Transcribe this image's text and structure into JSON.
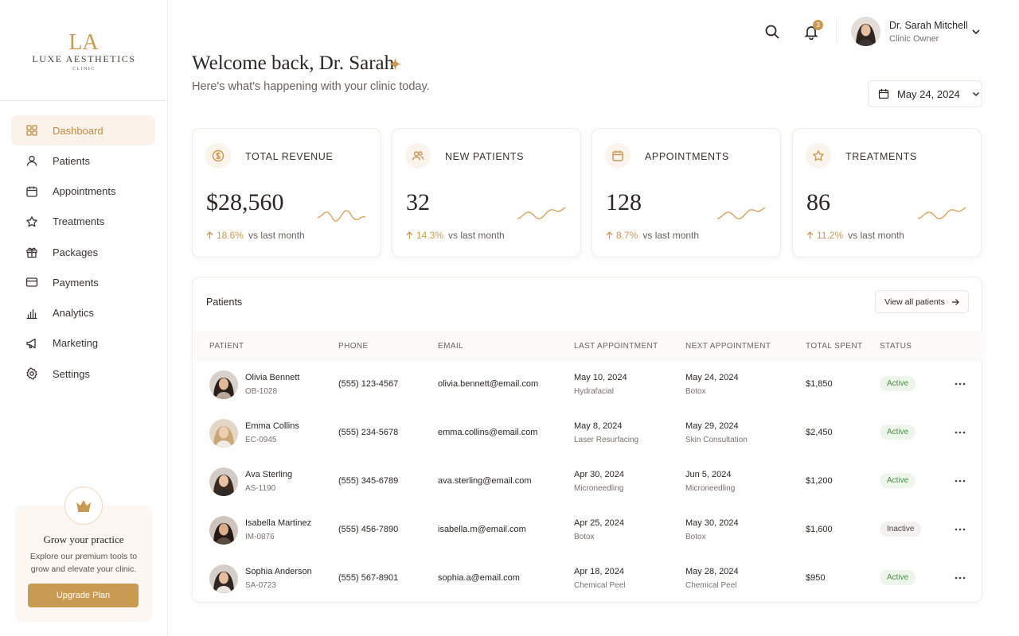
{
  "brand": {
    "mark": "LA",
    "name": "LUXE AESTHETICS",
    "sub": "CLINIC"
  },
  "nav": [
    {
      "label": "Dashboard",
      "icon": "grid-icon",
      "active": true
    },
    {
      "label": "Patients",
      "icon": "user-icon"
    },
    {
      "label": "Appointments",
      "icon": "calendar-icon"
    },
    {
      "label": "Treatments",
      "icon": "star-icon"
    },
    {
      "label": "Packages",
      "icon": "gift-icon"
    },
    {
      "label": "Payments",
      "icon": "credit-card-icon"
    },
    {
      "label": "Analytics",
      "icon": "bar-chart-icon"
    },
    {
      "label": "Marketing",
      "icon": "megaphone-icon"
    },
    {
      "label": "Settings",
      "icon": "gear-icon"
    }
  ],
  "promo": {
    "title": "Grow your practice",
    "text": "Explore our premium tools to grow and elevate your clinic.",
    "button": "Upgrade Plan",
    "icon": "crown-icon"
  },
  "header": {
    "notifications": "3",
    "user_name": "Dr. Sarah Mitchell",
    "user_role": "Clinic Owner",
    "welcome": "Welcome back, Dr. Sarah",
    "subtitle": "Here's what's happening with your clinic today.",
    "date": "May 24, 2024"
  },
  "stats": [
    {
      "label": "TOTAL REVENUE",
      "value": "$28,560",
      "change": "18.6%",
      "compare": "vs last month",
      "icon": "dollar-icon"
    },
    {
      "label": "NEW PATIENTS",
      "value": "32",
      "change": "14.3%",
      "compare": "vs last month",
      "icon": "users-icon"
    },
    {
      "label": "APPOINTMENTS",
      "value": "128",
      "change": "8.7%",
      "compare": "vs last month",
      "icon": "calendar-icon"
    },
    {
      "label": "TREATMENTS",
      "value": "86",
      "change": "11.2%",
      "compare": "vs last month",
      "icon": "star-icon"
    }
  ],
  "patients": {
    "title": "Patients",
    "view_all": "View all patients",
    "columns": [
      "PATIENT",
      "PHONE",
      "EMAIL",
      "LAST APPOINTMENT",
      "NEXT APPOINTMENT",
      "TOTAL SPENT",
      "STATUS"
    ],
    "rows": [
      {
        "name": "Olivia Bennett",
        "id": "OB-1028",
        "phone": "(555) 123-4567",
        "email": "olivia.bennett@email.com",
        "last_date": "May 10, 2024",
        "last_treatment": "Hydrafacial",
        "next_date": "May 24, 2024",
        "next_treatment": "Botox",
        "spent": "$1,850",
        "status": "Active"
      },
      {
        "name": "Emma Collins",
        "id": "EC-0945",
        "phone": "(555) 234-5678",
        "email": "emma.collins@email.com",
        "last_date": "May 8, 2024",
        "last_treatment": "Laser Resurfacing",
        "next_date": "May 29, 2024",
        "next_treatment": "Skin Consultation",
        "spent": "$2,450",
        "status": "Active"
      },
      {
        "name": "Ava Sterling",
        "id": "AS-1190",
        "phone": "(555) 345-6789",
        "email": "ava.sterling@email.com",
        "last_date": "Apr 30, 2024",
        "last_treatment": "Microneedling",
        "next_date": "Jun 5, 2024",
        "next_treatment": "Microneedling",
        "spent": "$1,200",
        "status": "Active"
      },
      {
        "name": "Isabella Martinez",
        "id": "IM-0876",
        "phone": "(555) 456-7890",
        "email": "isabella.m@email.com",
        "last_date": "Apr 25, 2024",
        "last_treatment": "Botox",
        "next_date": "May 30, 2024",
        "next_treatment": "Botox",
        "spent": "$1,600",
        "status": "Inactive"
      },
      {
        "name": "Sophia Anderson",
        "id": "SA-0723",
        "phone": "(555) 567-8901",
        "email": "sophia.a@email.com",
        "last_date": "Apr 18, 2024",
        "last_treatment": "Chemical Peel",
        "next_date": "May 28, 2024",
        "next_treatment": "Chemical Peel",
        "spent": "$950",
        "status": "Active"
      }
    ]
  },
  "colors": {
    "accent": "#c99a52",
    "active_bg": "#fbf3ea",
    "status_active": "#4a8a46"
  }
}
